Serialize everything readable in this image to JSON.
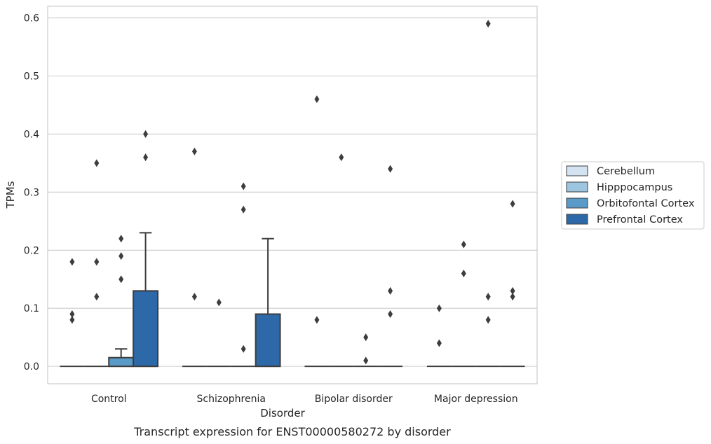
{
  "chart_data": {
    "type": "box",
    "title": "",
    "caption": "Transcript expression for ENST00000580272 by disorder",
    "xlabel": "Disorder",
    "ylabel": "TPMs",
    "ylim": [
      -0.03,
      0.62
    ],
    "yticks": [
      0.0,
      0.1,
      0.2,
      0.3,
      0.4,
      0.5,
      0.6
    ],
    "ytick_labels": [
      "0.0",
      "0.1",
      "0.2",
      "0.3",
      "0.4",
      "0.5",
      "0.6"
    ],
    "grid": true,
    "legend_position": "right",
    "categories": [
      "Control",
      "Schizophrenia",
      "Bipolar disorder",
      "Major depression"
    ],
    "series": [
      {
        "name": "Cerebellum",
        "color": "#d3e3f2",
        "boxes": [
          {
            "q1": 0,
            "median": 0,
            "q3": 0,
            "whisker_low": 0,
            "whisker_high": 0,
            "outliers": [
              0.08,
              0.09,
              0.18
            ]
          },
          {
            "q1": 0,
            "median": 0,
            "q3": 0,
            "whisker_low": 0,
            "whisker_high": 0,
            "outliers": [
              0.12,
              0.37
            ]
          },
          {
            "q1": 0,
            "median": 0,
            "q3": 0,
            "whisker_low": 0,
            "whisker_high": 0,
            "outliers": [
              0.08,
              0.46
            ]
          },
          {
            "q1": 0,
            "median": 0,
            "q3": 0,
            "whisker_low": 0,
            "whisker_high": 0,
            "outliers": [
              0.04,
              0.1
            ]
          }
        ]
      },
      {
        "name": "Hipppocampus",
        "color": "#9dc5df",
        "boxes": [
          {
            "q1": 0,
            "median": 0,
            "q3": 0,
            "whisker_low": 0,
            "whisker_high": 0,
            "outliers": [
              0.12,
              0.18,
              0.35
            ]
          },
          {
            "q1": 0,
            "median": 0,
            "q3": 0,
            "whisker_low": 0,
            "whisker_high": 0,
            "outliers": [
              0.11
            ]
          },
          {
            "q1": 0,
            "median": 0,
            "q3": 0,
            "whisker_low": 0,
            "whisker_high": 0,
            "outliers": [
              0.36
            ]
          },
          {
            "q1": 0,
            "median": 0,
            "q3": 0,
            "whisker_low": 0,
            "whisker_high": 0,
            "outliers": [
              0.16,
              0.21
            ]
          }
        ]
      },
      {
        "name": "Orbitofontal Cortex",
        "color": "#5a9ac8",
        "boxes": [
          {
            "q1": 0,
            "median": 0,
            "q3": 0.015,
            "whisker_low": 0,
            "whisker_high": 0.03,
            "outliers": [
              0.15,
              0.19,
              0.22
            ]
          },
          {
            "q1": 0,
            "median": 0,
            "q3": 0,
            "whisker_low": 0,
            "whisker_high": 0,
            "outliers": [
              0.03,
              0.27,
              0.31
            ]
          },
          {
            "q1": 0,
            "median": 0,
            "q3": 0,
            "whisker_low": 0,
            "whisker_high": 0,
            "outliers": [
              0.01,
              0.05
            ]
          },
          {
            "q1": 0,
            "median": 0,
            "q3": 0,
            "whisker_low": 0,
            "whisker_high": 0,
            "outliers": [
              0.08,
              0.12,
              0.59
            ]
          }
        ]
      },
      {
        "name": "Prefrontal Cortex",
        "color": "#2d69a9",
        "boxes": [
          {
            "q1": 0,
            "median": 0,
            "q3": 0.13,
            "whisker_low": 0,
            "whisker_high": 0.23,
            "outliers": [
              0.36,
              0.4
            ]
          },
          {
            "q1": 0,
            "median": 0,
            "q3": 0.09,
            "whisker_low": 0,
            "whisker_high": 0.22,
            "outliers": []
          },
          {
            "q1": 0,
            "median": 0,
            "q3": 0,
            "whisker_low": 0,
            "whisker_high": 0,
            "outliers": [
              0.09,
              0.13,
              0.34
            ]
          },
          {
            "q1": 0,
            "median": 0,
            "q3": 0,
            "whisker_low": 0,
            "whisker_high": 0,
            "outliers": [
              0.12,
              0.13,
              0.28
            ]
          }
        ]
      }
    ]
  }
}
